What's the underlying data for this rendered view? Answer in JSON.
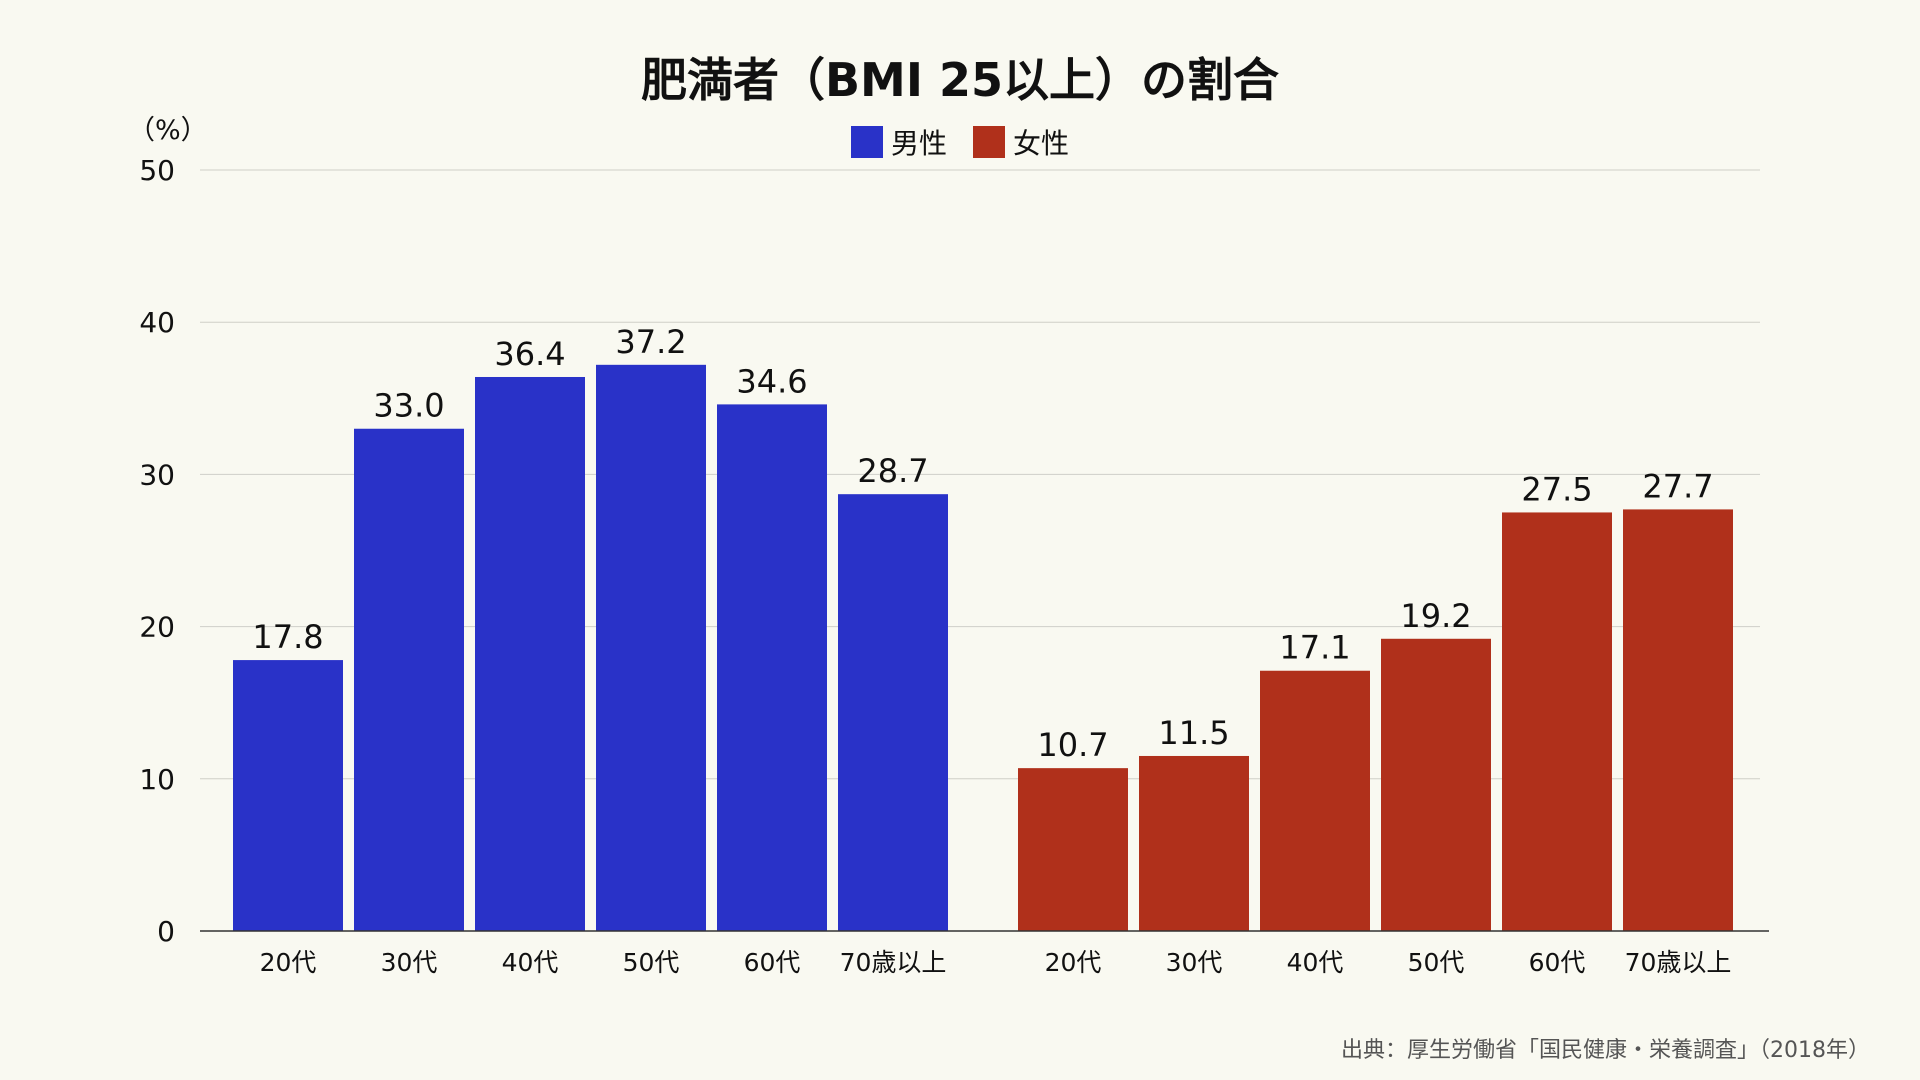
{
  "chart_data": {
    "type": "bar",
    "title": "肥満者（BMI 25以上）の割合",
    "ylabel": "（%）",
    "ylim": [
      0,
      50
    ],
    "yticks": [
      0,
      10,
      20,
      30,
      40,
      50
    ],
    "grid": true,
    "legend_placement": "top-center",
    "source": "出典：厚生労働省「国民健康・栄養調査」（2018年）",
    "categories": [
      "20代",
      "30代",
      "40代",
      "50代",
      "60代",
      "70歳以上"
    ],
    "series": [
      {
        "name": "男性",
        "color": "#2932c8",
        "values": [
          17.8,
          33.0,
          36.4,
          37.2,
          34.6,
          28.7
        ]
      },
      {
        "name": "女性",
        "color": "#b0301b",
        "values": [
          10.7,
          11.5,
          17.1,
          19.2,
          27.5,
          27.7
        ]
      }
    ]
  }
}
